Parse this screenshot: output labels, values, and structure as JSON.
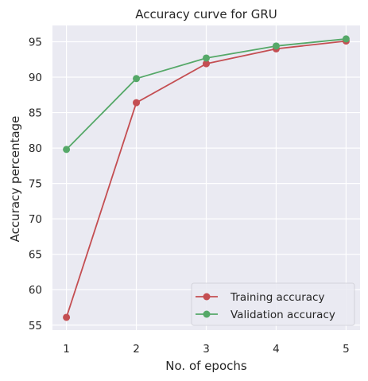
{
  "chart_data": {
    "type": "line",
    "title": "Accuracy curve for GRU",
    "xlabel": "No. of epochs",
    "ylabel": "Accuracy percentage",
    "x": [
      1,
      2,
      3,
      4,
      5
    ],
    "xlim": [
      0.8,
      5.2
    ],
    "ylim": [
      54.3,
      97.3
    ],
    "xticks": [
      1,
      2,
      3,
      4,
      5
    ],
    "yticks": [
      55,
      60,
      65,
      70,
      75,
      80,
      85,
      90,
      95
    ],
    "grid": true,
    "legend_position": "lower right",
    "series": [
      {
        "name": "Training accuracy",
        "color": "#c44e52",
        "marker": "circle",
        "values": [
          56.1,
          86.4,
          91.9,
          94.0,
          95.1
        ]
      },
      {
        "name": "Validation accuracy",
        "color": "#55a868",
        "marker": "circle",
        "values": [
          79.8,
          89.8,
          92.7,
          94.4,
          95.4
        ]
      }
    ],
    "background": "#eaeaf2",
    "grid_color": "#ffffff"
  }
}
